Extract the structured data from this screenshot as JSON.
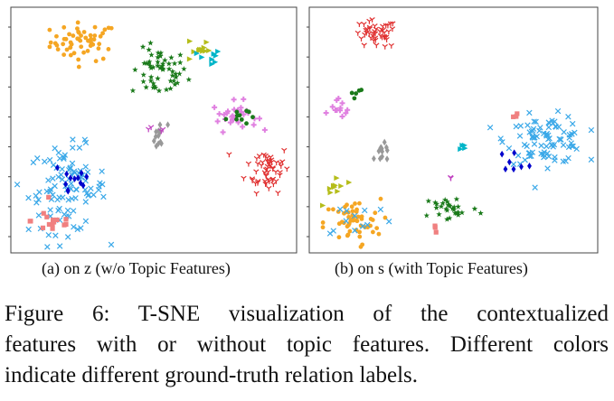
{
  "figure": {
    "caption_lines": [
      "Figure 6: T-SNE visualization of the contextualized",
      "features with or without topic features. Different colors",
      "indicate different ground-truth relation labels."
    ]
  },
  "chart_data": [
    {
      "type": "scatter",
      "subcaption": "(a) on z (w/o Topic Features)",
      "xlim": [
        0,
        100
      ],
      "ylim": [
        0,
        100
      ],
      "grid": false,
      "y_ticks_unlabeled": 8,
      "clusters": [
        {
          "color": "#f5a623",
          "marker": "dot",
          "cx": 25,
          "cy": 87,
          "sx": 6,
          "sy": 4,
          "n": 55
        },
        {
          "color": "#1a7a1a",
          "marker": "star",
          "cx": 52,
          "cy": 74,
          "sx": 5,
          "sy": 5,
          "n": 55
        },
        {
          "color": "#b5bd1a",
          "marker": "tri",
          "cx": 66,
          "cy": 84,
          "sx": 2,
          "sy": 3,
          "n": 12
        },
        {
          "color": "#00b5c8",
          "marker": "tri",
          "cx": 70,
          "cy": 80,
          "sx": 2,
          "sy": 2,
          "n": 8
        },
        {
          "color": "#e03030",
          "marker": "y",
          "cx": 91,
          "cy": 34,
          "sx": 4,
          "sy": 5,
          "n": 55
        },
        {
          "color": "#e080e0",
          "marker": "plus",
          "cx": 79,
          "cy": 56,
          "sx": 4,
          "sy": 3,
          "n": 30
        },
        {
          "color": "#1a7a1a",
          "marker": "dot",
          "cx": 80,
          "cy": 56,
          "sx": 2,
          "sy": 2,
          "n": 10
        },
        {
          "color": "#999999",
          "marker": "diamond",
          "cx": 52,
          "cy": 47,
          "sx": 1.5,
          "sy": 3,
          "n": 14
        },
        {
          "color": "#c040c0",
          "marker": "y",
          "cx": 51,
          "cy": 52,
          "sx": 2,
          "sy": 2,
          "n": 4
        },
        {
          "color": "#3aa8e8",
          "marker": "x",
          "cx": 19,
          "cy": 25,
          "sx": 7,
          "sy": 9,
          "n": 100
        },
        {
          "color": "#0000cc",
          "marker": "diamond",
          "cx": 21,
          "cy": 30,
          "sx": 4,
          "sy": 5,
          "n": 12
        },
        {
          "color": "#f08080",
          "marker": "sq",
          "cx": 14,
          "cy": 12,
          "sx": 4,
          "sy": 3,
          "n": 15
        }
      ]
    },
    {
      "type": "scatter",
      "subcaption": "(b) on s (with Topic Features)",
      "xlim": [
        0,
        100
      ],
      "ylim": [
        0,
        100
      ],
      "grid": false,
      "y_ticks_unlabeled": 8,
      "clusters": [
        {
          "color": "#e03030",
          "marker": "y",
          "cx": 22,
          "cy": 90,
          "sx": 4,
          "sy": 3,
          "n": 45
        },
        {
          "color": "#e080e0",
          "marker": "plus",
          "cx": 10,
          "cy": 59,
          "sx": 2,
          "sy": 2,
          "n": 12
        },
        {
          "color": "#1a7a1a",
          "marker": "dot",
          "cx": 15,
          "cy": 64,
          "sx": 1.5,
          "sy": 2,
          "n": 5
        },
        {
          "color": "#999999",
          "marker": "diamond",
          "cx": 25,
          "cy": 40,
          "sx": 1.5,
          "sy": 2,
          "n": 12
        },
        {
          "color": "#b5bd1a",
          "marker": "tri",
          "cx": 8,
          "cy": 26,
          "sx": 2,
          "sy": 3,
          "n": 10
        },
        {
          "color": "#00b5c8",
          "marker": "tri",
          "cx": 54,
          "cy": 43,
          "sx": 1,
          "sy": 1,
          "n": 4
        },
        {
          "color": "#c040c0",
          "marker": "y",
          "cx": 50,
          "cy": 30,
          "sx": 1,
          "sy": 1,
          "n": 2
        },
        {
          "color": "#3aa8e8",
          "marker": "x",
          "cx": 83,
          "cy": 46,
          "sx": 7,
          "sy": 5,
          "n": 90
        },
        {
          "color": "#f08080",
          "marker": "sq",
          "cx": 72,
          "cy": 56,
          "sx": 1,
          "sy": 1,
          "n": 3
        },
        {
          "color": "#0000cc",
          "marker": "diamond",
          "cx": 72,
          "cy": 37,
          "sx": 3,
          "sy": 2,
          "n": 7
        },
        {
          "color": "#f5a623",
          "marker": "dot",
          "cx": 14,
          "cy": 11,
          "sx": 5,
          "sy": 5,
          "n": 55
        },
        {
          "color": "#1a7a1a",
          "marker": "star",
          "cx": 49,
          "cy": 17,
          "sx": 5,
          "sy": 3,
          "n": 30
        },
        {
          "color": "#3aa8e8",
          "marker": "x",
          "cx": 16,
          "cy": 13,
          "sx": 7,
          "sy": 4,
          "n": 12
        },
        {
          "color": "#f08080",
          "marker": "sq",
          "cx": 44,
          "cy": 10,
          "sx": 1,
          "sy": 1,
          "n": 3
        }
      ]
    }
  ]
}
